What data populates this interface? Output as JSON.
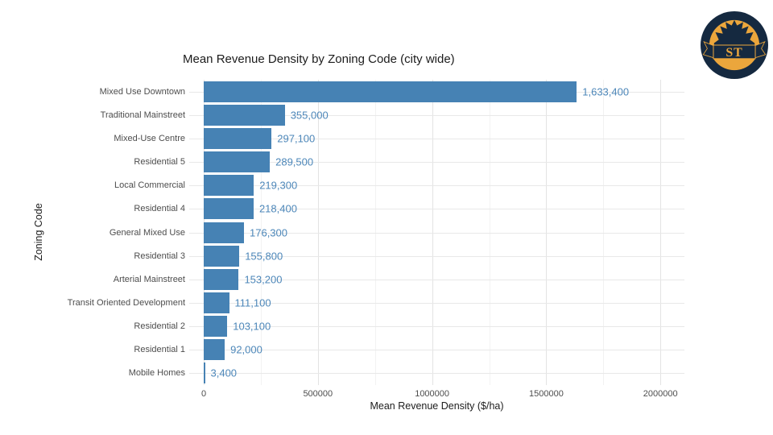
{
  "page": {
    "background": "#FFFFFF"
  },
  "logo": {
    "text": "ST",
    "navy": "#152940",
    "gold": "#EBA63C"
  },
  "chart_data": {
    "type": "bar",
    "orientation": "horizontal",
    "title": "Mean Revenue Density by Zoning Code (city wide)",
    "xlabel": "Mean Revenue Density ($/ha)",
    "ylabel": "Zoning Code",
    "categories": [
      "Mixed Use Downtown",
      "Traditional Mainstreet",
      "Mixed-Use Centre",
      "Residential 5",
      "Local Commercial",
      "Residential 4",
      "General Mixed Use",
      "Residential 3",
      "Arterial Mainstreet",
      "Transit Oriented Development",
      "Residential 2",
      "Residential 1",
      "Mobile Homes"
    ],
    "values": [
      1633400,
      355000,
      297100,
      289500,
      219300,
      218400,
      176300,
      155800,
      153200,
      111100,
      103100,
      92000,
      3400
    ],
    "value_labels": [
      "1,633,400",
      "355,000",
      "297,100",
      "289,500",
      "219,300",
      "218,400",
      "176,300",
      "155,800",
      "153,200",
      "111,100",
      "103,100",
      "92,000",
      "3,400"
    ],
    "x_tick_values": [
      0,
      500000,
      1000000,
      1500000,
      2000000
    ],
    "x_tick_labels": [
      "0",
      "500000",
      "1000000",
      "1500000",
      "2000000"
    ],
    "x_minor_tick_values": [
      250000,
      750000,
      1250000,
      1750000
    ],
    "xlim": [
      -63500,
      2105000
    ],
    "grid": true,
    "legend": false,
    "colors": {
      "bar": "#4682B4",
      "value_label": "#4D87B9",
      "grid_major": "#E3E3E3",
      "grid_minor": "#F2F2F2",
      "grid_row": "#E8E8E8",
      "axis_text": "#4D4D4D",
      "title_text": "#1C1C1C"
    }
  }
}
